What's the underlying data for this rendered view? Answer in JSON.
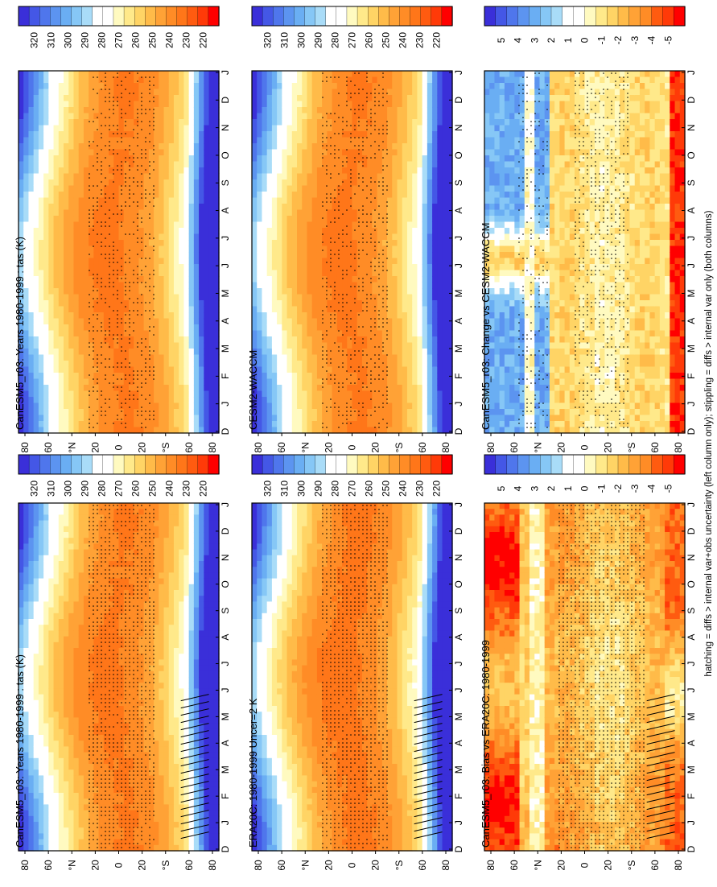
{
  "footnote": "hatching = diffs > internal var+obs uncertainty (left column only); stippling = diffs > internal var only (both columns)",
  "palettes": {
    "temperature": [
      "#3a2fd9",
      "#4457e6",
      "#4f76ec",
      "#5c94f0",
      "#6aaef3",
      "#86c7f6",
      "#a9dcf8",
      "#ffffff",
      "#ffffff",
      "#fffac0",
      "#ffe98a",
      "#ffd465",
      "#ffbb49",
      "#ffa236",
      "#ff8c26",
      "#ff7619",
      "#ff5b10",
      "#ff3a08",
      "#ff0000"
    ],
    "difference": [
      "#3a2fd9",
      "#4457e6",
      "#4f76ec",
      "#5c94f0",
      "#6aaef3",
      "#86c7f6",
      "#a9dcf8",
      "#ffffff",
      "#ffffff",
      "#fffac0",
      "#ffe98a",
      "#ffd465",
      "#ffbb49",
      "#ffa236",
      "#ff8c26",
      "#ff5b10",
      "#ff3a08",
      "#ff0000"
    ]
  },
  "chart_data": [
    {
      "type": "heatmap",
      "title": "CanESM5_r03: Years 1980-1999 : tas (K)",
      "field": "temperature",
      "x": [
        "D",
        "J",
        "F",
        "M",
        "A",
        "M",
        "J",
        "J",
        "A",
        "S",
        "O",
        "N",
        "D",
        "J"
      ],
      "y_ticks": [
        "80",
        "60",
        "°N",
        "20",
        "0",
        "20",
        "°S",
        "60",
        "80"
      ],
      "colorbar": [
        "320",
        "310",
        "300",
        "290",
        "280",
        "270",
        "260",
        "250",
        "240",
        "230",
        "220"
      ],
      "stippling": true,
      "hatching": true
    },
    {
      "type": "heatmap",
      "title": "CanESM5_r03: Years 1980-1999 : tas (K)",
      "field": "temperature",
      "x": [
        "D",
        "J",
        "F",
        "M",
        "A",
        "M",
        "J",
        "J",
        "A",
        "S",
        "O",
        "N",
        "D",
        "J"
      ],
      "y_ticks": [
        "80",
        "60",
        "°N",
        "20",
        "0",
        "20",
        "°S",
        "60",
        "80"
      ],
      "colorbar": [
        "320",
        "310",
        "300",
        "290",
        "280",
        "270",
        "260",
        "250",
        "240",
        "230",
        "220"
      ],
      "stippling": true,
      "hatching": false
    },
    {
      "type": "heatmap",
      "title": "ERA20C: 1980-1999 Uncer=2 K",
      "field": "temperature",
      "x": [
        "D",
        "J",
        "F",
        "M",
        "A",
        "M",
        "J",
        "J",
        "A",
        "S",
        "O",
        "N",
        "D",
        "J"
      ],
      "y_ticks": [
        "80",
        "60",
        "°N",
        "20",
        "0",
        "20",
        "°S",
        "60",
        "80"
      ],
      "colorbar": [
        "320",
        "310",
        "300",
        "290",
        "280",
        "270",
        "260",
        "250",
        "240",
        "230",
        "220"
      ],
      "stippling": true,
      "hatching": true
    },
    {
      "type": "heatmap",
      "title": "CESM2-WACCM",
      "field": "temperature",
      "x": [
        "D",
        "J",
        "F",
        "M",
        "A",
        "M",
        "J",
        "J",
        "A",
        "S",
        "O",
        "N",
        "D",
        "J"
      ],
      "y_ticks": [
        "80",
        "60",
        "°N",
        "20",
        "0",
        "20",
        "°S",
        "60",
        "80"
      ],
      "colorbar": [
        "320",
        "310",
        "300",
        "290",
        "280",
        "270",
        "260",
        "250",
        "240",
        "230",
        "220"
      ],
      "stippling": true,
      "hatching": false
    },
    {
      "type": "heatmap",
      "title": "CanESM5_r03: Bias vs ERA20C: 1980-1999",
      "field": "bias",
      "x": [
        "D",
        "J",
        "F",
        "M",
        "A",
        "M",
        "J",
        "J",
        "A",
        "S",
        "O",
        "N",
        "D",
        "J"
      ],
      "y_ticks": [
        "80",
        "60",
        "°N",
        "20",
        "0",
        "20",
        "°S",
        "60",
        "80"
      ],
      "colorbar": [
        "5",
        "4",
        "3",
        "2",
        "1",
        "0",
        "-1",
        "-2",
        "-3",
        "-4",
        "-5"
      ],
      "stippling": true,
      "hatching": true
    },
    {
      "type": "heatmap",
      "title": "CanESM5_r03: Change vs CESM2-WACCM",
      "field": "change",
      "x": [
        "D",
        "J",
        "F",
        "M",
        "A",
        "M",
        "J",
        "J",
        "A",
        "S",
        "O",
        "N",
        "D",
        "J"
      ],
      "y_ticks": [
        "80",
        "60",
        "°N",
        "20",
        "0",
        "20",
        "°S",
        "60",
        "80"
      ],
      "colorbar": [
        "5",
        "4",
        "3",
        "2",
        "1",
        "0",
        "-1",
        "-2",
        "-3",
        "-4",
        "-5"
      ],
      "stippling": true,
      "hatching": false
    }
  ]
}
